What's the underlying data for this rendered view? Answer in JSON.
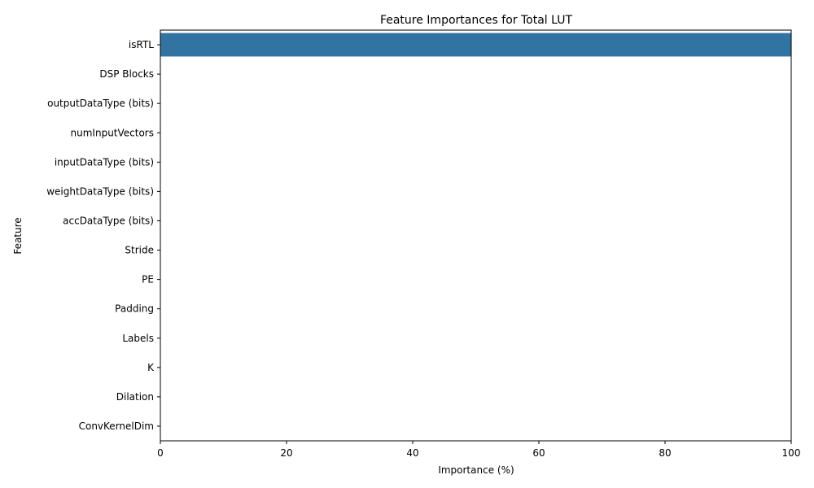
{
  "chart_data": {
    "type": "bar",
    "orientation": "horizontal",
    "title": "Feature Importances for Total LUT",
    "xlabel": "Importance (%)",
    "ylabel": "Feature",
    "xlim": [
      0,
      100
    ],
    "xticks": [
      0,
      20,
      40,
      60,
      80,
      100
    ],
    "grid": false,
    "bar_color": "#3274a1",
    "categories": [
      "isRTL",
      "DSP Blocks",
      "outputDataType (bits)",
      "numInputVectors",
      "inputDataType (bits)",
      "weightDataType (bits)",
      "accDataType (bits)",
      "Stride",
      "PE",
      "Padding",
      "Labels",
      "K",
      "Dilation",
      "ConvKernelDim"
    ],
    "values": [
      100,
      0,
      0,
      0,
      0,
      0,
      0,
      0,
      0,
      0,
      0,
      0,
      0,
      0
    ]
  }
}
